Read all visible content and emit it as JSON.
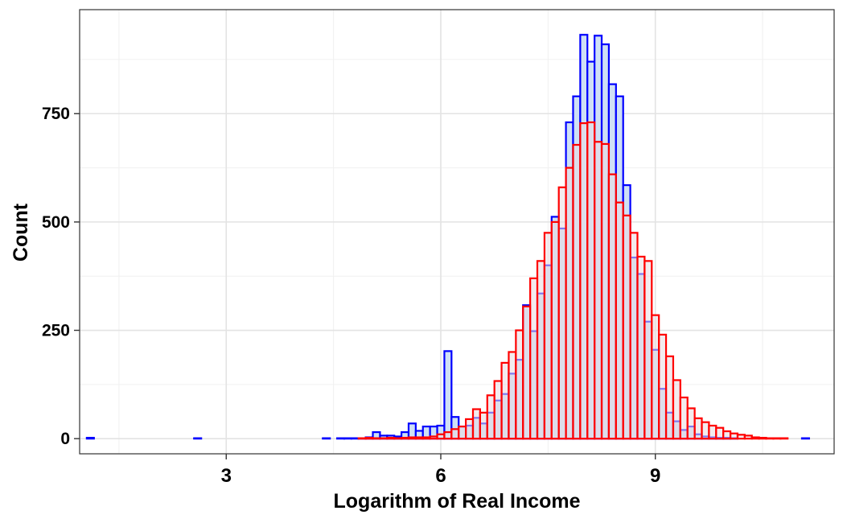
{
  "chart_data": {
    "type": "bar",
    "subtype": "overlaid-histogram",
    "xlabel": "Logarithm of Real Income",
    "ylabel": "Count",
    "xlim": [
      0.95,
      11.5
    ],
    "ylim": [
      -35,
      990
    ],
    "x_ticks": [
      3,
      6,
      9
    ],
    "x_tick_labels": [
      "3",
      "6",
      "9"
    ],
    "y_ticks": [
      0,
      250,
      500,
      750
    ],
    "y_tick_labels": [
      "0",
      "250",
      "500",
      "750"
    ],
    "grid": true,
    "legend": "none",
    "bin_width": 0.1,
    "series": [
      {
        "color": "#0000ff",
        "fill": "#cfe0f5",
        "bins": [
          [
            1.1,
            2
          ],
          [
            2.6,
            1
          ],
          [
            4.4,
            1
          ],
          [
            4.6,
            1
          ],
          [
            4.7,
            1
          ],
          [
            4.8,
            1
          ],
          [
            4.9,
            1
          ],
          [
            5.0,
            3
          ],
          [
            5.1,
            15
          ],
          [
            5.2,
            7
          ],
          [
            5.3,
            7
          ],
          [
            5.4,
            5
          ],
          [
            5.5,
            15
          ],
          [
            5.6,
            35
          ],
          [
            5.7,
            18
          ],
          [
            5.8,
            28
          ],
          [
            5.9,
            28
          ],
          [
            6.0,
            30
          ],
          [
            6.1,
            202
          ],
          [
            6.2,
            50
          ],
          [
            6.3,
            28
          ],
          [
            6.4,
            30
          ],
          [
            6.5,
            48
          ],
          [
            6.6,
            35
          ],
          [
            6.7,
            60
          ],
          [
            6.8,
            88
          ],
          [
            6.9,
            103
          ],
          [
            7.0,
            150
          ],
          [
            7.1,
            182
          ],
          [
            7.2,
            308
          ],
          [
            7.3,
            248
          ],
          [
            7.4,
            335
          ],
          [
            7.5,
            400
          ],
          [
            7.6,
            512
          ],
          [
            7.7,
            485
          ],
          [
            7.8,
            730
          ],
          [
            7.9,
            790
          ],
          [
            8.0,
            932
          ],
          [
            8.1,
            870
          ],
          [
            8.2,
            930
          ],
          [
            8.3,
            910
          ],
          [
            8.4,
            818
          ],
          [
            8.5,
            790
          ],
          [
            8.6,
            585
          ],
          [
            8.7,
            418
          ],
          [
            8.8,
            380
          ],
          [
            8.9,
            270
          ],
          [
            9.0,
            205
          ],
          [
            9.1,
            115
          ],
          [
            9.2,
            60
          ],
          [
            9.3,
            40
          ],
          [
            9.4,
            20
          ],
          [
            9.5,
            28
          ],
          [
            9.6,
            10
          ],
          [
            9.7,
            5
          ],
          [
            9.8,
            3
          ],
          [
            9.9,
            2
          ],
          [
            10.0,
            2
          ],
          [
            10.1,
            1
          ],
          [
            11.1,
            1
          ]
        ]
      },
      {
        "color": "#ff0000",
        "fill": "#eadbe0",
        "bins": [
          [
            4.9,
            1
          ],
          [
            5.0,
            2
          ],
          [
            5.1,
            1
          ],
          [
            5.2,
            1
          ],
          [
            5.3,
            2
          ],
          [
            5.4,
            1
          ],
          [
            5.5,
            2
          ],
          [
            5.6,
            3
          ],
          [
            5.7,
            3
          ],
          [
            5.8,
            3
          ],
          [
            5.9,
            5
          ],
          [
            6.0,
            10
          ],
          [
            6.1,
            15
          ],
          [
            6.2,
            22
          ],
          [
            6.3,
            28
          ],
          [
            6.4,
            45
          ],
          [
            6.5,
            68
          ],
          [
            6.6,
            60
          ],
          [
            6.7,
            100
          ],
          [
            6.8,
            133
          ],
          [
            6.9,
            175
          ],
          [
            7.0,
            200
          ],
          [
            7.1,
            250
          ],
          [
            7.2,
            305
          ],
          [
            7.3,
            370
          ],
          [
            7.4,
            410
          ],
          [
            7.5,
            475
          ],
          [
            7.6,
            500
          ],
          [
            7.7,
            580
          ],
          [
            7.8,
            625
          ],
          [
            7.9,
            678
          ],
          [
            8.0,
            728
          ],
          [
            8.1,
            730
          ],
          [
            8.2,
            685
          ],
          [
            8.3,
            680
          ],
          [
            8.4,
            610
          ],
          [
            8.5,
            545
          ],
          [
            8.6,
            515
          ],
          [
            8.7,
            475
          ],
          [
            8.8,
            420
          ],
          [
            8.9,
            410
          ],
          [
            9.0,
            285
          ],
          [
            9.1,
            240
          ],
          [
            9.2,
            190
          ],
          [
            9.3,
            135
          ],
          [
            9.4,
            95
          ],
          [
            9.5,
            70
          ],
          [
            9.6,
            47
          ],
          [
            9.7,
            38
          ],
          [
            9.8,
            30
          ],
          [
            9.9,
            25
          ],
          [
            10.0,
            17
          ],
          [
            10.1,
            12
          ],
          [
            10.2,
            9
          ],
          [
            10.3,
            7
          ],
          [
            10.4,
            3
          ],
          [
            10.5,
            2
          ],
          [
            10.6,
            1
          ],
          [
            10.7,
            1
          ],
          [
            10.8,
            1
          ]
        ]
      }
    ]
  }
}
